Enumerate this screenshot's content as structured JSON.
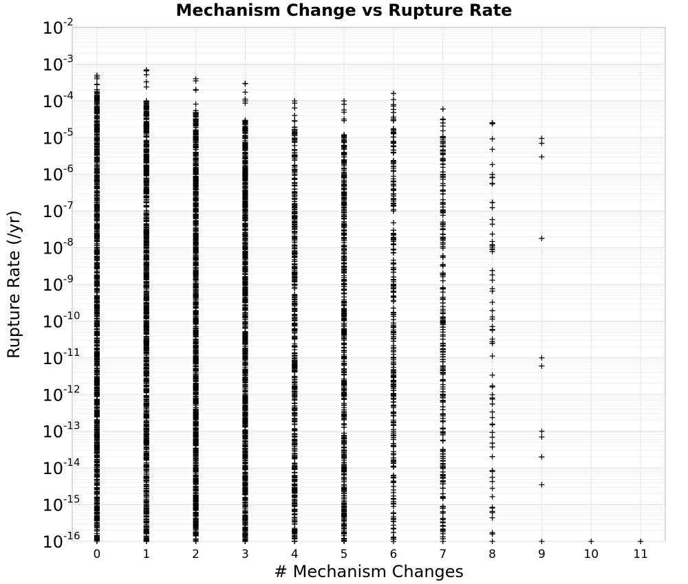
{
  "chart_data": {
    "type": "scatter",
    "title": "Mechanism Change vs Rupture Rate",
    "xlabel": "# Mechanism Changes",
    "ylabel": "Rupture Rate (/yr)",
    "x_ticks": [
      0,
      1,
      2,
      3,
      4,
      5,
      6,
      7,
      8,
      9,
      10,
      11
    ],
    "xlim": [
      -0.5,
      11.5
    ],
    "y_scale": "log",
    "ylim": [
      1e-16,
      0.01
    ],
    "y_ticks": [
      {
        "base": "10",
        "exp": "-2"
      },
      {
        "base": "10",
        "exp": "-3"
      },
      {
        "base": "10",
        "exp": "-4"
      },
      {
        "base": "10",
        "exp": "-5"
      },
      {
        "base": "10",
        "exp": "-6"
      },
      {
        "base": "10",
        "exp": "-7"
      },
      {
        "base": "10",
        "exp": "-8"
      },
      {
        "base": "10",
        "exp": "-9"
      },
      {
        "base": "10",
        "exp": "-10"
      },
      {
        "base": "10",
        "exp": "-11"
      },
      {
        "base": "10",
        "exp": "-12"
      },
      {
        "base": "10",
        "exp": "-13"
      },
      {
        "base": "10",
        "exp": "-14"
      },
      {
        "base": "10",
        "exp": "-15"
      },
      {
        "base": "10",
        "exp": "-16"
      }
    ],
    "grid": true,
    "marker": "+",
    "marker_color": "#000000",
    "columns": [
      {
        "x": 0,
        "max": 0.0005,
        "dense_top": 0.0002,
        "density": "very dense"
      },
      {
        "x": 1,
        "max": 0.0007,
        "dense_top": 0.0001,
        "density": "very dense"
      },
      {
        "x": 2,
        "max": 0.0004,
        "dense_top": 5e-05,
        "density": "very dense"
      },
      {
        "x": 3,
        "max": 0.0003,
        "dense_top": 3e-05,
        "density": "very dense"
      },
      {
        "x": 4,
        "max": 0.0001,
        "dense_top": 2e-05,
        "density": "dense"
      },
      {
        "x": 5,
        "max": 0.0001,
        "dense_top": 1.5e-05,
        "density": "dense"
      },
      {
        "x": 6,
        "max": 0.00016,
        "dense_top": 4e-05,
        "density": "medium"
      },
      {
        "x": 7,
        "max": 6e-05,
        "dense_top": 2e-05,
        "density": "medium"
      },
      {
        "x": 8,
        "max": 2.5e-05,
        "dense_top": 2.5e-05,
        "density": "sparse"
      },
      {
        "x": 9,
        "points": [
          9.5e-06,
          7e-06,
          3e-06,
          1.8e-08,
          1e-11,
          6e-12,
          1e-13,
          7e-14,
          2e-14,
          3.5e-15,
          1e-16
        ]
      },
      {
        "x": 10,
        "points": [
          1e-16
        ]
      },
      {
        "x": 11,
        "points": [
          1e-16
        ]
      }
    ]
  }
}
